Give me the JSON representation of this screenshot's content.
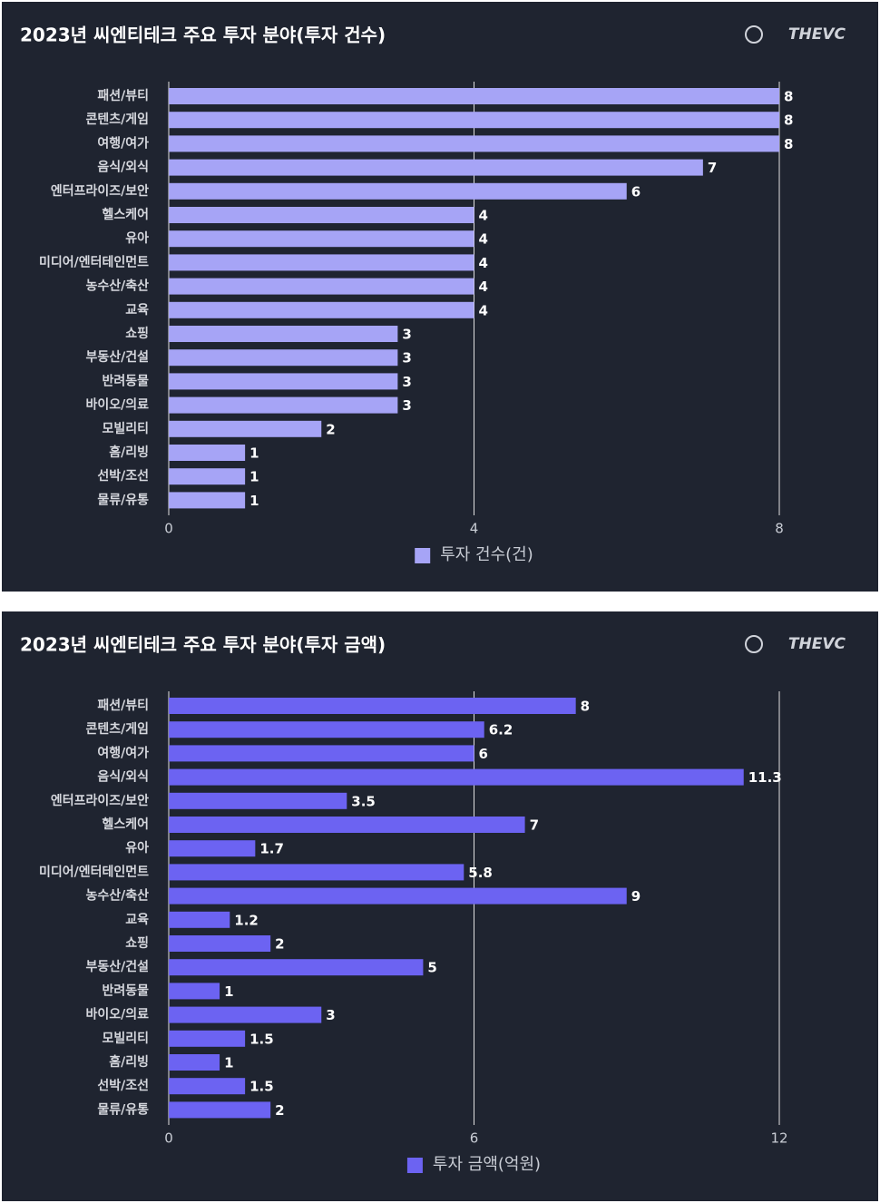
{
  "brand": "THEVC",
  "chart_data": [
    {
      "type": "bar",
      "orientation": "horizontal",
      "title": "2023년 씨엔티테크 주요 투자 분야(투자 건수)",
      "categories": [
        "패션/뷰티",
        "콘텐츠/게임",
        "여행/여가",
        "음식/외식",
        "엔터프라이즈/보안",
        "헬스케어",
        "유아",
        "미디어/엔터테인먼트",
        "농수산/축산",
        "교육",
        "쇼핑",
        "부동산/건설",
        "반려동물",
        "바이오/의료",
        "모빌리티",
        "홈/리빙",
        "선박/조선",
        "물류/유통"
      ],
      "series": [
        {
          "name": "투자 건수(건)",
          "color": "#a6a4f6",
          "values": [
            8,
            8,
            8,
            7,
            6,
            4,
            4,
            4,
            4,
            4,
            3,
            3,
            3,
            3,
            2,
            1,
            1,
            1
          ]
        }
      ],
      "xlim": [
        0,
        8
      ],
      "xticks": [
        0,
        4,
        8
      ],
      "grid": true,
      "legend": "bottom"
    },
    {
      "type": "bar",
      "orientation": "horizontal",
      "title": "2023년 씨엔티테크 주요 투자 분야(투자 금액)",
      "categories": [
        "패션/뷰티",
        "콘텐츠/게임",
        "여행/여가",
        "음식/외식",
        "엔터프라이즈/보안",
        "헬스케어",
        "유아",
        "미디어/엔터테인먼트",
        "농수산/축산",
        "교육",
        "쇼핑",
        "부동산/건설",
        "반려동물",
        "바이오/의료",
        "모빌리티",
        "홈/리빙",
        "선박/조선",
        "물류/유통"
      ],
      "series": [
        {
          "name": "투자 금액(억원)",
          "color": "#6c63f2",
          "values": [
            8,
            6.2,
            6,
            11.3,
            3.5,
            7,
            1.7,
            5.8,
            9,
            1.2,
            2,
            5,
            1,
            3,
            1.5,
            1,
            1.5,
            2
          ]
        }
      ],
      "xlim": [
        0,
        12
      ],
      "xticks": [
        0,
        6,
        12
      ],
      "grid": true,
      "legend": "bottom"
    }
  ]
}
